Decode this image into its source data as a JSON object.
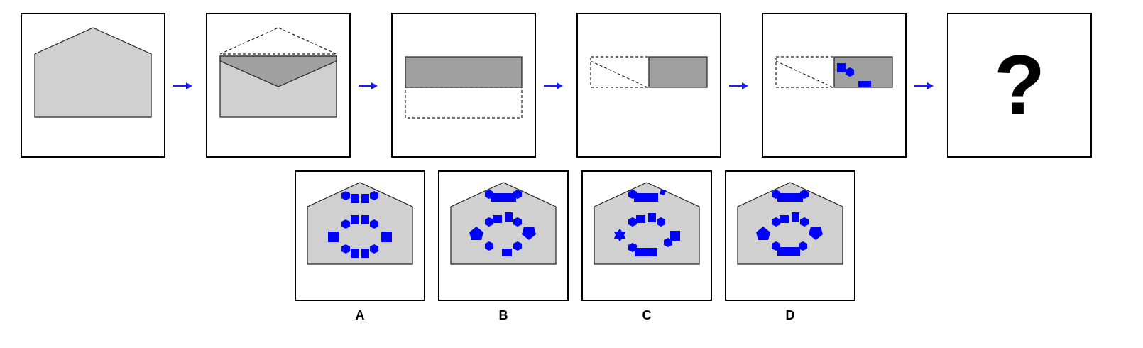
{
  "puzzle": {
    "steps": [
      {
        "name": "step-1-unfolded-envelope"
      },
      {
        "name": "step-2-top-flap-folded-down"
      },
      {
        "name": "step-3-folded-to-rectangle"
      },
      {
        "name": "step-4-folded-in-half"
      },
      {
        "name": "step-5-punched-holes"
      }
    ],
    "unknown_symbol": "?",
    "arrow_color": "#1a1aff",
    "shape_fill": "#d0d0d0",
    "flap_fill": "#a0a0a0",
    "hole_color": "#0000ff"
  },
  "options": [
    {
      "label": "A"
    },
    {
      "label": "B"
    },
    {
      "label": "C"
    },
    {
      "label": "D"
    }
  ]
}
